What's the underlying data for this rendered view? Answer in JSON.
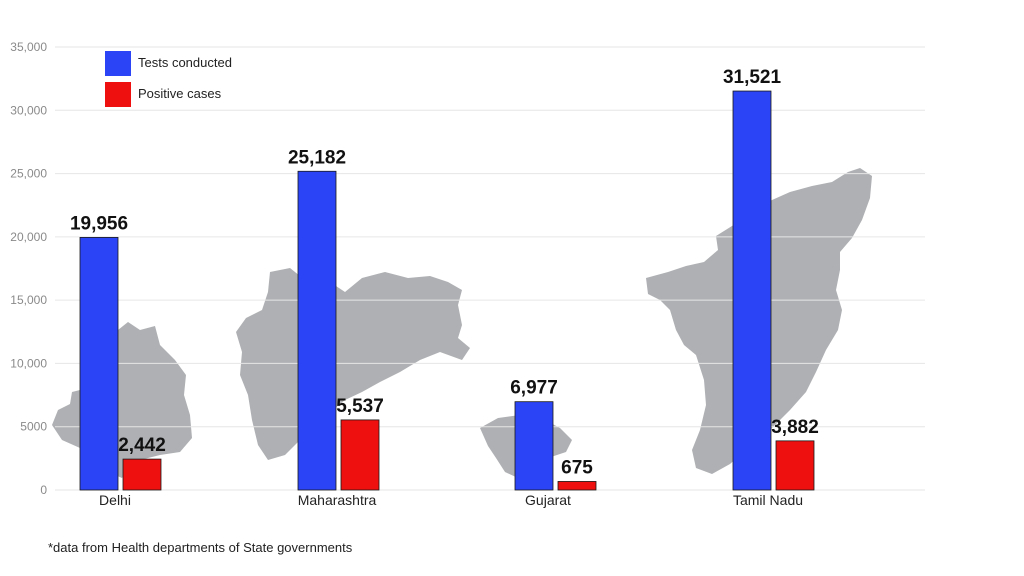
{
  "chart_data": {
    "type": "bar",
    "categories": [
      "Delhi",
      "Maharashtra",
      "Gujarat",
      "Tamil Nadu"
    ],
    "series": [
      {
        "name": "Tests conducted",
        "values": [
          19956,
          25182,
          6977,
          31521
        ],
        "labels": [
          "19,956",
          "25,182",
          "6,977",
          "31,521"
        ],
        "color": "#2b44f5"
      },
      {
        "name": "Positive cases",
        "values": [
          2442,
          5537,
          675,
          3882
        ],
        "labels": [
          "2,442",
          "5,537",
          "675",
          "3,882"
        ],
        "color": "#ee0f0f"
      }
    ],
    "yticks": [
      "0",
      "5000",
      "10,000",
      "15,000",
      "20,000",
      "25,000",
      "30,000",
      "35,000"
    ],
    "ylim": [
      0,
      35000
    ],
    "grid": true,
    "legend_position": "top-left",
    "xlabel": "",
    "ylabel": "",
    "title": "",
    "background_map_color": "#aeb0b3"
  },
  "footnote": "*data from Health departments of State governments"
}
